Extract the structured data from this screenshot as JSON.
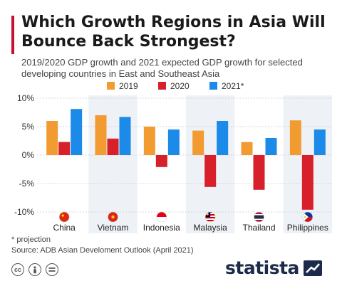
{
  "header": {
    "title": "Which Growth Regions in Asia Will Bounce Back Strongest?",
    "subtitle": "2019/2020 GDP growth and 2021 expected GDP growth for selected developing countries in East and Southeast Asia"
  },
  "chart_data": {
    "type": "bar",
    "categories": [
      "China",
      "Vietnam",
      "Indonesia",
      "Malaysia",
      "Thailand",
      "Philippines"
    ],
    "series": [
      {
        "name": "2019",
        "values": [
          6.0,
          7.0,
          5.0,
          4.3,
          2.3,
          6.1
        ],
        "color": "#f29b30"
      },
      {
        "name": "2020",
        "values": [
          2.3,
          2.9,
          -2.1,
          -5.6,
          -6.1,
          -9.6
        ],
        "color": "#d8202a"
      },
      {
        "name": "2021*",
        "values": [
          8.1,
          6.7,
          4.5,
          6.0,
          3.0,
          4.5
        ],
        "color": "#1b8ae8"
      }
    ],
    "ylim": [
      -10,
      10
    ],
    "yticks": [
      10,
      5,
      0,
      -5,
      -10
    ],
    "ytick_labels": [
      "10%",
      "5%",
      "0%",
      "-5%",
      "-10%"
    ],
    "grid": true,
    "legend_position": "top",
    "flags": [
      "china-flag-icon",
      "vietnam-flag-icon",
      "indonesia-flag-icon",
      "malaysia-flag-icon",
      "thailand-flag-icon",
      "philippines-flag-icon"
    ]
  },
  "footer": {
    "note": "* projection",
    "source": "Source: ADB Asian Develoment Outlook (April 2021)",
    "license_icons": [
      "cc-icon",
      "attribution-icon",
      "no-derivatives-icon"
    ],
    "brand": "statista"
  }
}
